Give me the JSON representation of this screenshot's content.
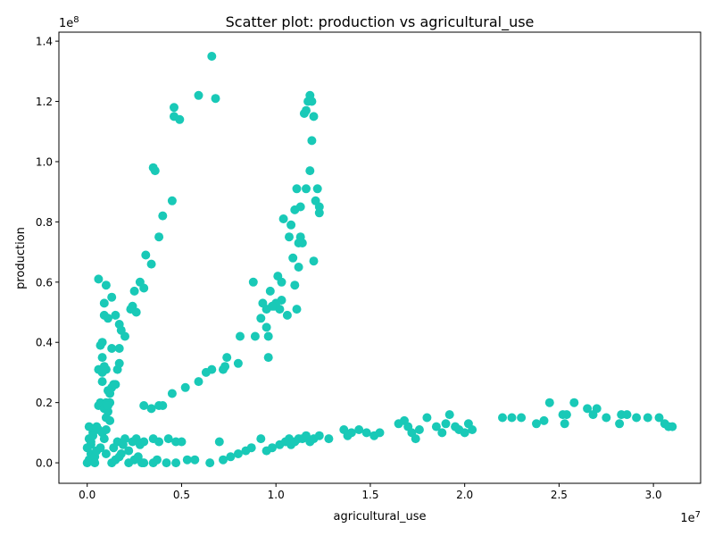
{
  "chart_data": {
    "type": "scatter",
    "title": "Scatter plot: production vs agricultural_use",
    "xlabel": "agricultural_use",
    "ylabel": "production",
    "x_multiplier": "1e7",
    "y_multiplier": "1e8",
    "xlim": [
      -0.15,
      3.25
    ],
    "ylim": [
      -0.068,
      1.43
    ],
    "x_ticks": [
      0.0,
      0.5,
      1.0,
      1.5,
      2.0,
      2.5,
      3.0
    ],
    "x_tick_labels": [
      "0.0",
      "0.5",
      "1.0",
      "1.5",
      "2.0",
      "2.5",
      "3.0"
    ],
    "y_ticks": [
      0.0,
      0.2,
      0.4,
      0.6,
      0.8,
      1.0,
      1.2,
      1.4
    ],
    "y_tick_labels": [
      "0.0",
      "0.2",
      "0.4",
      "0.6",
      "0.8",
      "1.0",
      "1.2",
      "1.4"
    ],
    "grid": false,
    "marker_color": "#19c9b7",
    "series": [
      {
        "points": [
          [
            0.0,
            0.0
          ],
          [
            0.01,
            0.01
          ],
          [
            0.02,
            0.03
          ],
          [
            0.0,
            0.05
          ],
          [
            0.02,
            0.06
          ],
          [
            0.01,
            0.08
          ],
          [
            0.03,
            0.1
          ],
          [
            0.01,
            0.12
          ],
          [
            0.04,
            0.02
          ],
          [
            0.05,
            0.04
          ],
          [
            0.02,
            0.07
          ],
          [
            0.03,
            0.09
          ],
          [
            0.06,
            0.11
          ],
          [
            0.07,
            0.05
          ],
          [
            0.08,
            0.1
          ],
          [
            0.05,
            0.12
          ],
          [
            0.09,
            0.08
          ],
          [
            0.1,
            0.11
          ],
          [
            0.04,
            0.0
          ],
          [
            0.1,
            0.03
          ],
          [
            0.06,
            0.19
          ],
          [
            0.07,
            0.2
          ],
          [
            0.09,
            0.18
          ],
          [
            0.12,
            0.2
          ],
          [
            0.08,
            0.27
          ],
          [
            0.06,
            0.31
          ],
          [
            0.08,
            0.3
          ],
          [
            0.1,
            0.31
          ],
          [
            0.07,
            0.39
          ],
          [
            0.08,
            0.4
          ],
          [
            0.08,
            0.35
          ],
          [
            0.09,
            0.32
          ],
          [
            0.06,
            0.61
          ],
          [
            0.09,
            0.53
          ],
          [
            0.09,
            0.49
          ],
          [
            0.11,
            0.48
          ],
          [
            0.13,
            0.55
          ],
          [
            0.1,
            0.59
          ],
          [
            0.11,
            0.24
          ],
          [
            0.12,
            0.23
          ],
          [
            0.13,
            0.25
          ],
          [
            0.14,
            0.26
          ],
          [
            0.15,
            0.26
          ],
          [
            0.13,
            0.38
          ],
          [
            0.17,
            0.38
          ],
          [
            0.16,
            0.31
          ],
          [
            0.17,
            0.33
          ],
          [
            0.15,
            0.49
          ],
          [
            0.17,
            0.46
          ],
          [
            0.18,
            0.44
          ],
          [
            0.2,
            0.42
          ],
          [
            0.1,
            0.15
          ],
          [
            0.11,
            0.17
          ],
          [
            0.12,
            0.14
          ],
          [
            0.1,
            0.2
          ],
          [
            0.11,
            0.19
          ],
          [
            0.13,
            0.0
          ],
          [
            0.15,
            0.01
          ],
          [
            0.17,
            0.02
          ],
          [
            0.14,
            0.05
          ],
          [
            0.16,
            0.07
          ],
          [
            0.18,
            0.03
          ],
          [
            0.19,
            0.06
          ],
          [
            0.2,
            0.08
          ],
          [
            0.22,
            0.04
          ],
          [
            0.24,
            0.07
          ],
          [
            0.26,
            0.08
          ],
          [
            0.28,
            0.06
          ],
          [
            0.3,
            0.07
          ],
          [
            0.25,
            0.01
          ],
          [
            0.27,
            0.02
          ],
          [
            0.29,
            0.0
          ],
          [
            0.22,
            0.0
          ],
          [
            0.23,
            0.51
          ],
          [
            0.24,
            0.52
          ],
          [
            0.26,
            0.5
          ],
          [
            0.25,
            0.57
          ],
          [
            0.28,
            0.6
          ],
          [
            0.3,
            0.58
          ],
          [
            0.31,
            0.69
          ],
          [
            0.34,
            0.66
          ],
          [
            0.35,
            0.98
          ],
          [
            0.36,
            0.97
          ],
          [
            0.38,
            0.75
          ],
          [
            0.4,
            0.82
          ],
          [
            0.45,
            0.87
          ],
          [
            0.46,
            1.15
          ],
          [
            0.46,
            1.18
          ],
          [
            0.49,
            1.14
          ],
          [
            0.59,
            1.22
          ],
          [
            0.66,
            1.35
          ],
          [
            0.68,
            1.21
          ],
          [
            0.3,
            0.19
          ],
          [
            0.34,
            0.18
          ],
          [
            0.38,
            0.19
          ],
          [
            0.4,
            0.19
          ],
          [
            0.45,
            0.23
          ],
          [
            0.52,
            0.25
          ],
          [
            0.59,
            0.27
          ],
          [
            0.63,
            0.3
          ],
          [
            0.66,
            0.31
          ],
          [
            0.72,
            0.31
          ],
          [
            0.73,
            0.32
          ],
          [
            0.74,
            0.35
          ],
          [
            0.8,
            0.33
          ],
          [
            0.81,
            0.42
          ],
          [
            0.88,
            0.6
          ],
          [
            0.89,
            0.42
          ],
          [
            0.92,
            0.48
          ],
          [
            0.93,
            0.53
          ],
          [
            0.95,
            0.45
          ],
          [
            0.96,
            0.42
          ],
          [
            0.96,
            0.35
          ],
          [
            0.95,
            0.51
          ],
          [
            0.97,
            0.57
          ],
          [
            0.99,
            0.52
          ],
          [
            1.01,
            0.62
          ],
          [
            1.02,
            0.51
          ],
          [
            1.03,
            0.54
          ],
          [
            1.03,
            0.6
          ],
          [
            1.04,
            0.81
          ],
          [
            1.06,
            0.49
          ],
          [
            1.07,
            0.75
          ],
          [
            1.08,
            0.79
          ],
          [
            1.09,
            0.68
          ],
          [
            1.1,
            0.59
          ],
          [
            1.1,
            0.84
          ],
          [
            1.11,
            0.91
          ],
          [
            1.12,
            0.65
          ],
          [
            1.13,
            0.85
          ],
          [
            1.13,
            0.75
          ],
          [
            1.14,
            0.73
          ],
          [
            1.15,
            1.16
          ],
          [
            1.16,
            1.17
          ],
          [
            1.17,
            1.2
          ],
          [
            1.18,
            1.22
          ],
          [
            1.19,
            1.2
          ],
          [
            1.18,
            0.97
          ],
          [
            1.19,
            1.07
          ],
          [
            1.2,
            1.15
          ],
          [
            1.2,
            0.67
          ],
          [
            1.21,
            0.87
          ],
          [
            1.22,
            0.91
          ],
          [
            1.23,
            0.83
          ],
          [
            1.23,
            0.85
          ],
          [
            1.16,
            0.91
          ],
          [
            1.12,
            0.73
          ],
          [
            1.11,
            0.51
          ],
          [
            1.0,
            0.53
          ],
          [
            0.98,
            0.52
          ],
          [
            0.3,
            0.0
          ],
          [
            0.35,
            0.0
          ],
          [
            0.37,
            0.01
          ],
          [
            0.42,
            0.0
          ],
          [
            0.47,
            0.0
          ],
          [
            0.53,
            0.01
          ],
          [
            0.57,
            0.01
          ],
          [
            0.65,
            0.0
          ],
          [
            0.35,
            0.08
          ],
          [
            0.38,
            0.07
          ],
          [
            0.43,
            0.08
          ],
          [
            0.47,
            0.07
          ],
          [
            0.5,
            0.07
          ],
          [
            0.7,
            0.07
          ],
          [
            0.72,
            0.01
          ],
          [
            0.76,
            0.02
          ],
          [
            0.8,
            0.03
          ],
          [
            0.84,
            0.04
          ],
          [
            0.87,
            0.05
          ],
          [
            0.92,
            0.08
          ],
          [
            0.95,
            0.04
          ],
          [
            0.98,
            0.05
          ],
          [
            1.02,
            0.06
          ],
          [
            1.05,
            0.07
          ],
          [
            1.07,
            0.08
          ],
          [
            1.08,
            0.06
          ],
          [
            1.1,
            0.07
          ],
          [
            1.12,
            0.08
          ],
          [
            1.14,
            0.08
          ],
          [
            1.16,
            0.09
          ],
          [
            1.18,
            0.07
          ],
          [
            1.2,
            0.08
          ],
          [
            1.23,
            0.09
          ],
          [
            1.28,
            0.08
          ],
          [
            1.36,
            0.11
          ],
          [
            1.38,
            0.09
          ],
          [
            1.4,
            0.1
          ],
          [
            1.44,
            0.11
          ],
          [
            1.48,
            0.1
          ],
          [
            1.52,
            0.09
          ],
          [
            1.55,
            0.1
          ],
          [
            1.65,
            0.13
          ],
          [
            1.68,
            0.14
          ],
          [
            1.7,
            0.12
          ],
          [
            1.72,
            0.1
          ],
          [
            1.74,
            0.08
          ],
          [
            1.76,
            0.11
          ],
          [
            1.8,
            0.15
          ],
          [
            1.85,
            0.12
          ],
          [
            1.88,
            0.1
          ],
          [
            1.9,
            0.13
          ],
          [
            1.92,
            0.16
          ],
          [
            1.95,
            0.12
          ],
          [
            1.97,
            0.11
          ],
          [
            2.0,
            0.1
          ],
          [
            2.02,
            0.13
          ],
          [
            2.04,
            0.11
          ],
          [
            2.2,
            0.15
          ],
          [
            2.25,
            0.15
          ],
          [
            2.3,
            0.15
          ],
          [
            2.38,
            0.13
          ],
          [
            2.42,
            0.14
          ],
          [
            2.45,
            0.2
          ],
          [
            2.52,
            0.16
          ],
          [
            2.53,
            0.13
          ],
          [
            2.54,
            0.16
          ],
          [
            2.58,
            0.2
          ],
          [
            2.65,
            0.18
          ],
          [
            2.68,
            0.16
          ],
          [
            2.7,
            0.18
          ],
          [
            2.75,
            0.15
          ],
          [
            2.82,
            0.13
          ],
          [
            2.83,
            0.16
          ],
          [
            2.86,
            0.16
          ],
          [
            2.91,
            0.15
          ],
          [
            2.97,
            0.15
          ],
          [
            3.03,
            0.15
          ],
          [
            3.06,
            0.13
          ],
          [
            3.08,
            0.12
          ],
          [
            3.1,
            0.12
          ]
        ]
      }
    ]
  }
}
